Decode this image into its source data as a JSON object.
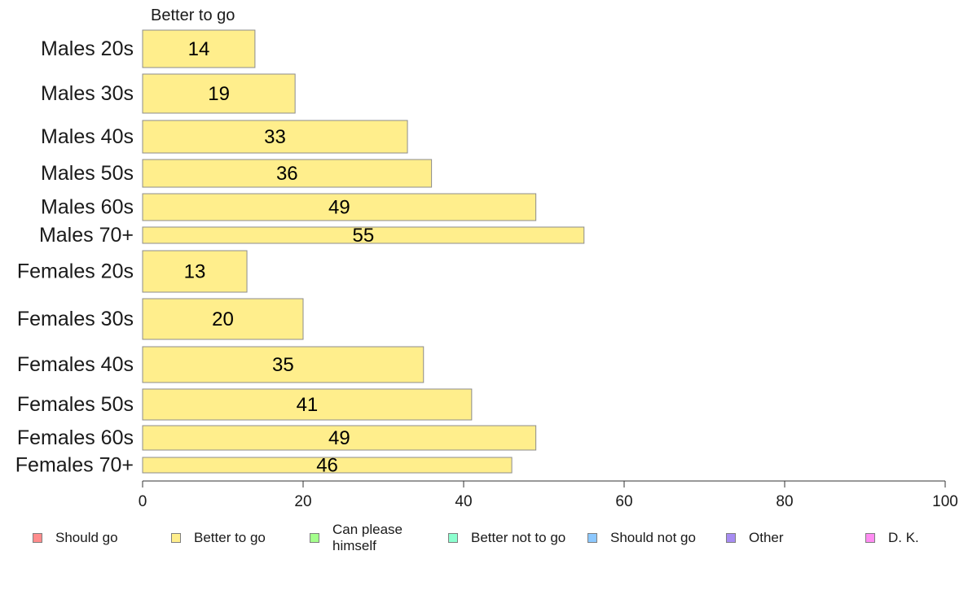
{
  "chart_data": {
    "type": "bar",
    "orientation": "horizontal",
    "series_label": "Better to go",
    "categories": [
      "Males 20s",
      "Males 30s",
      "Males 40s",
      "Males 50s",
      "Males 60s",
      "Males 70+",
      "Females 20s",
      "Females 30s",
      "Females 40s",
      "Females 50s",
      "Females 60s",
      "Females 70+"
    ],
    "values": [
      14,
      19,
      33,
      36,
      49,
      55,
      13,
      20,
      35,
      41,
      49,
      46
    ],
    "xlim": [
      0,
      100
    ],
    "xticks": [
      "0",
      "20",
      "40",
      "60",
      "80",
      "100"
    ],
    "grid": false,
    "bar_color": "#ffee8c"
  },
  "legend": {
    "items": [
      {
        "label": "Should go",
        "color": "#ff8c8c"
      },
      {
        "label": "Better to go",
        "color": "#ffee8c"
      },
      {
        "label": "Can please\nhimself",
        "color": "#a4ff8c"
      },
      {
        "label": "Better not to go",
        "color": "#8cffcf"
      },
      {
        "label": "Should not go",
        "color": "#8cc8ff"
      },
      {
        "label": "Other",
        "color": "#a78cf2"
      },
      {
        "label": "D. K.",
        "color": "#ff8cf2"
      }
    ]
  }
}
